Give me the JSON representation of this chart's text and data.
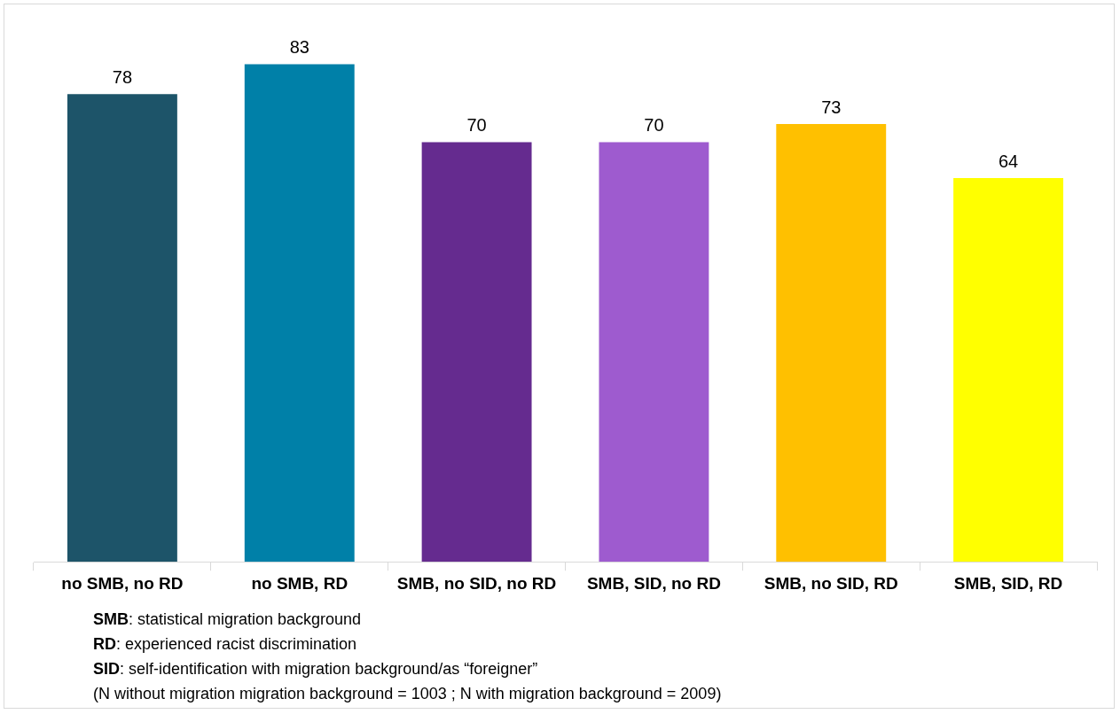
{
  "chart_data": {
    "type": "bar",
    "categories": [
      "no SMB, no RD",
      "no SMB, RD",
      "SMB, no SID, no RD",
      "SMB, SID, no RD",
      "SMB, no SID, RD",
      "SMB, SID, RD"
    ],
    "values": [
      78,
      83,
      70,
      70,
      73,
      64
    ],
    "colors": [
      "#1d5469",
      "#0080a8",
      "#652b8f",
      "#9e5bcf",
      "#ffc000",
      "#ffff00"
    ],
    "data_labels": true,
    "grid": false,
    "legend": false,
    "tick_labels": "x",
    "annotations": [
      "SMB: statistical migration background",
      "RD: experienced racist discrimination",
      "SID: self-identification with migration background/as “foreigner”",
      "(N without migration migration background = 1003 ; N with migration background = 2009)"
    ]
  }
}
